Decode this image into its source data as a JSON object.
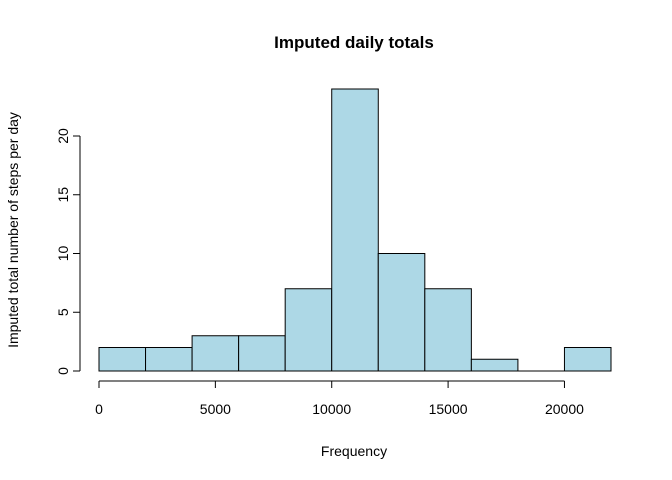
{
  "chart_data": {
    "type": "bar",
    "title": "Imputed daily totals",
    "xlabel": "Frequency",
    "ylabel": "Imputed total number of steps per day",
    "bin_edges": [
      0,
      2000,
      4000,
      6000,
      8000,
      10000,
      12000,
      14000,
      16000,
      18000,
      20000,
      22000
    ],
    "values": [
      2,
      2,
      3,
      3,
      7,
      24,
      10,
      7,
      1,
      0,
      2
    ],
    "xlim": [
      0,
      22000
    ],
    "ylim": [
      0,
      24
    ],
    "x_ticks": [
      "0",
      "5000",
      "10000",
      "15000",
      "20000"
    ],
    "y_ticks": [
      "0",
      "5",
      "10",
      "15",
      "20"
    ],
    "bar_color": "#add8e6",
    "border_color": "#000000",
    "grid": false,
    "legend": "none"
  }
}
